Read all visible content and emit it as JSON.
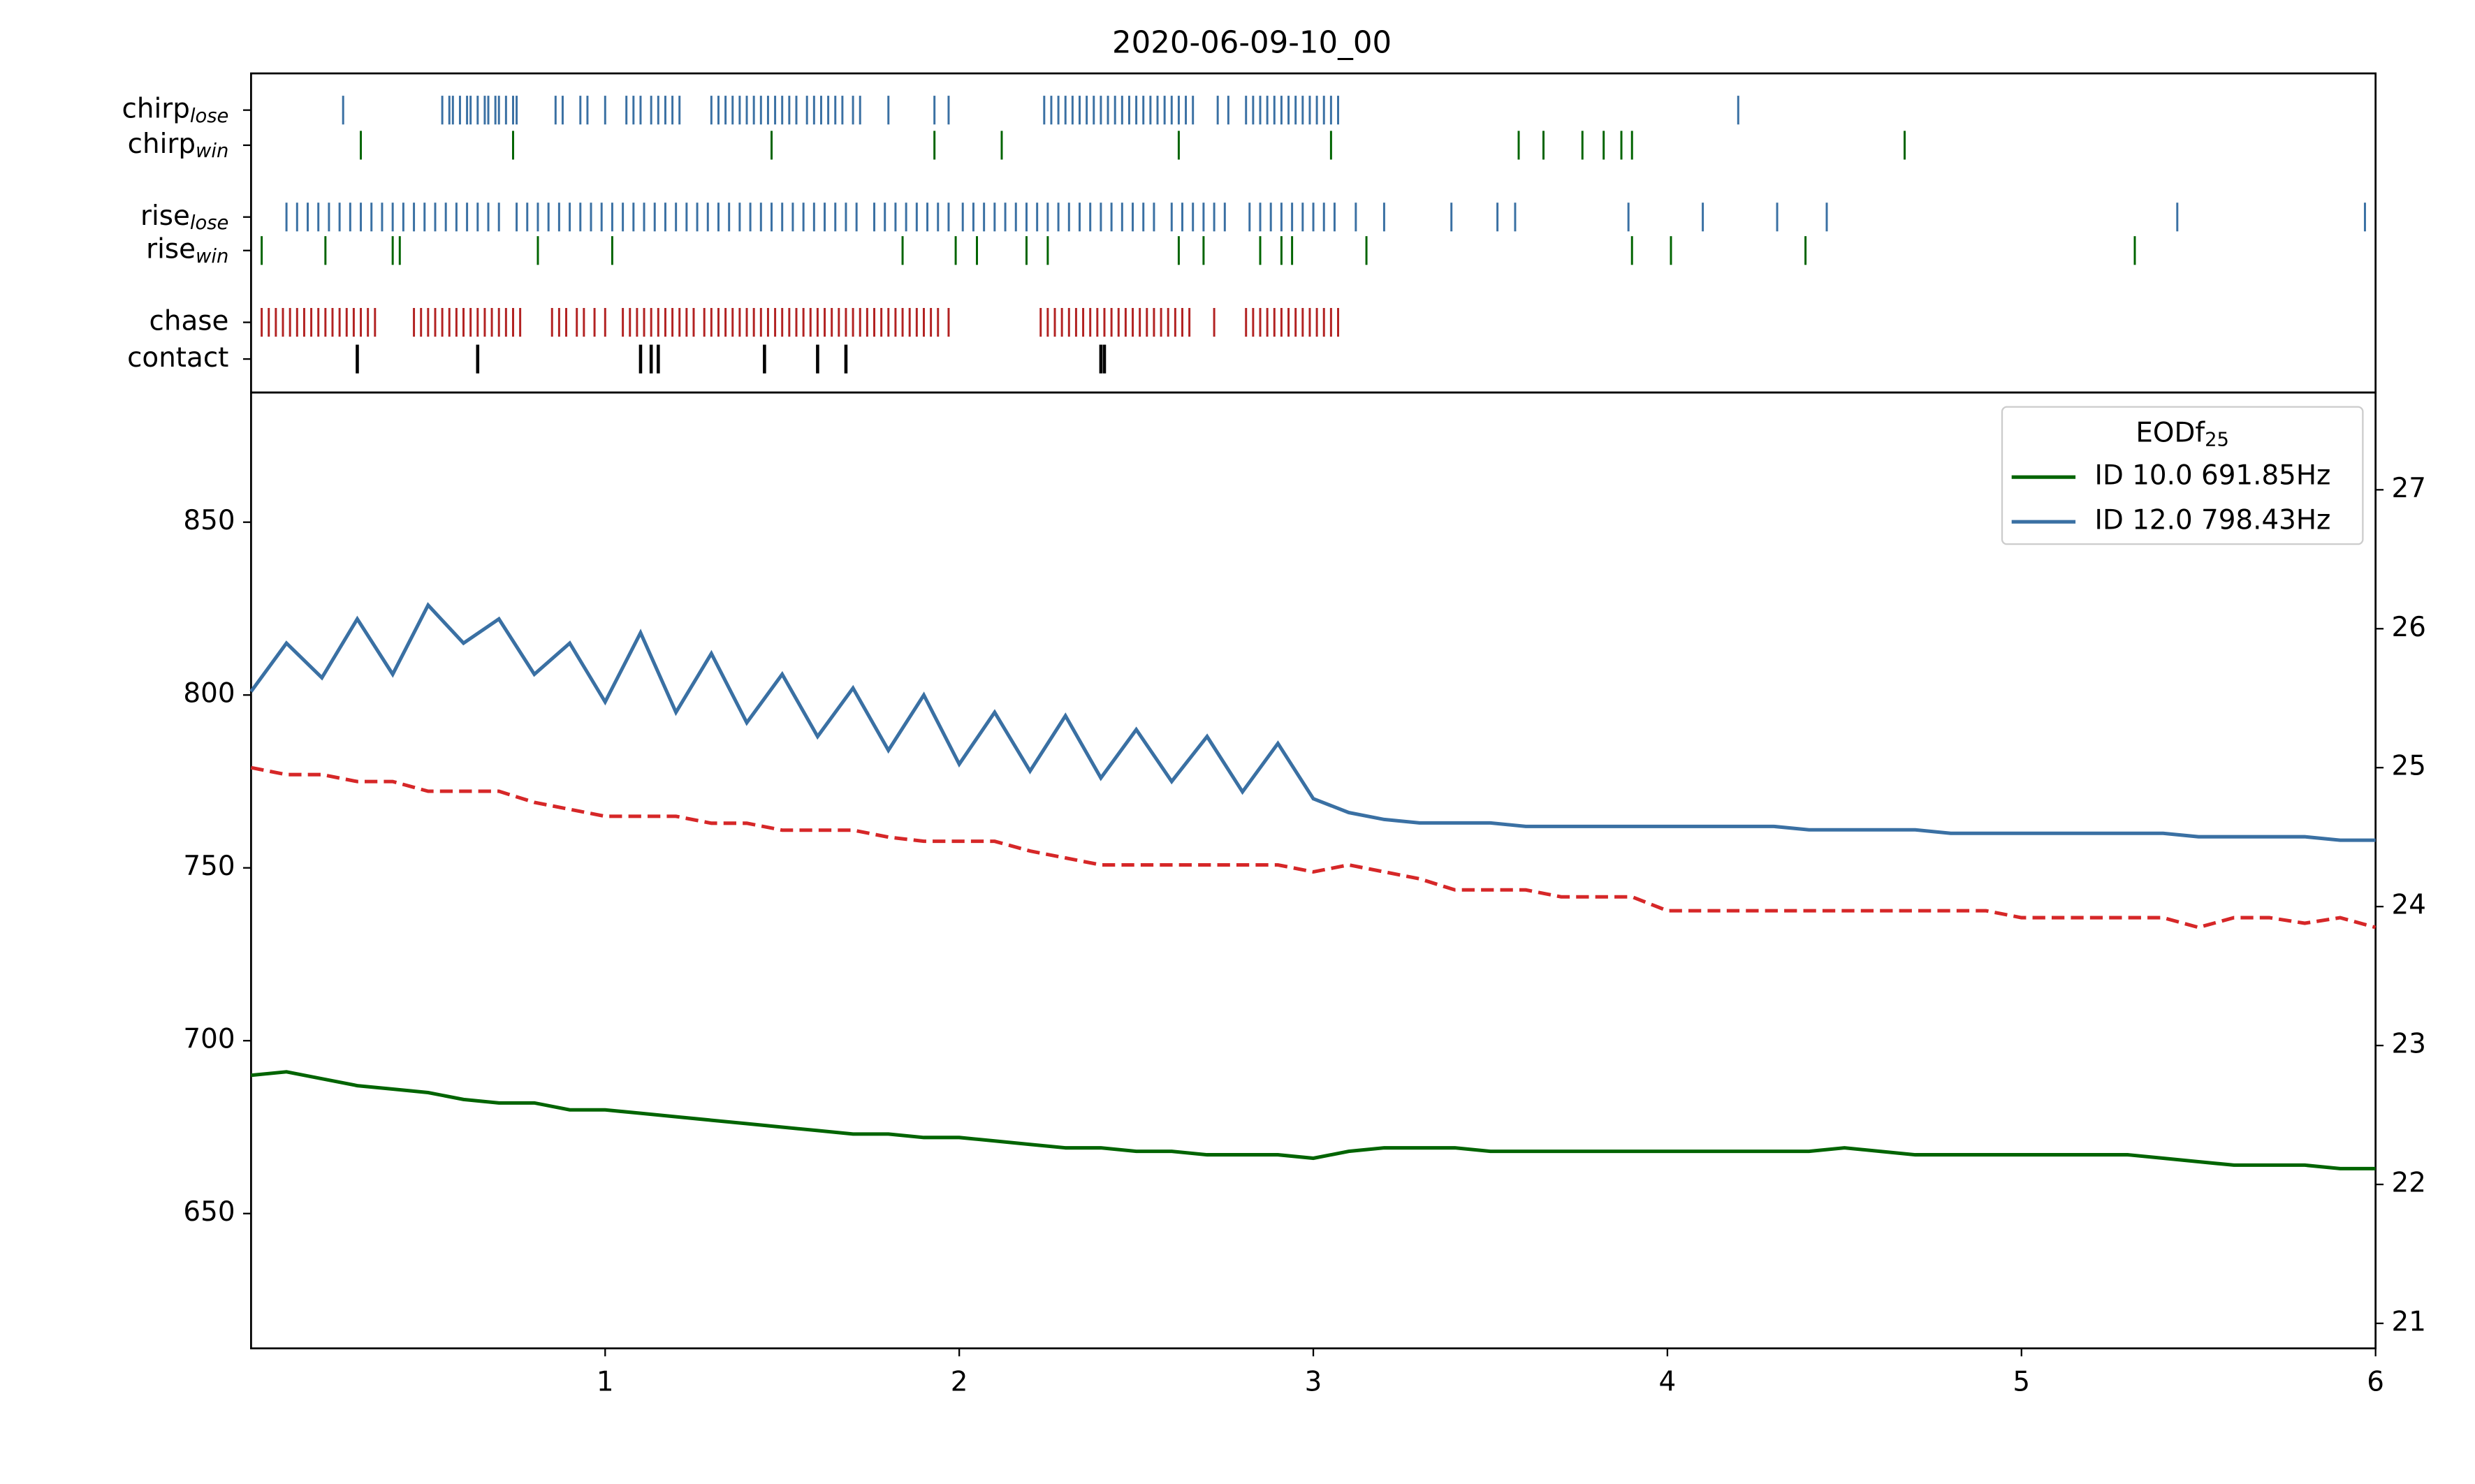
{
  "chart_data": {
    "type": "line",
    "title": "2020-06-09-10_00",
    "event_rows": [
      {
        "name": "chirp",
        "sub": "lose",
        "color": "#3a70a3",
        "times": [
          0.26,
          0.54,
          0.56,
          0.57,
          0.59,
          0.61,
          0.62,
          0.64,
          0.66,
          0.67,
          0.69,
          0.7,
          0.72,
          0.74,
          0.75,
          0.86,
          0.88,
          0.93,
          0.95,
          1.0,
          1.06,
          1.08,
          1.1,
          1.13,
          1.15,
          1.17,
          1.19,
          1.21,
          1.3,
          1.32,
          1.34,
          1.36,
          1.38,
          1.4,
          1.42,
          1.44,
          1.46,
          1.48,
          1.5,
          1.52,
          1.54,
          1.57,
          1.59,
          1.61,
          1.63,
          1.65,
          1.67,
          1.7,
          1.72,
          1.8,
          1.93,
          1.97,
          2.24,
          2.26,
          2.28,
          2.3,
          2.32,
          2.34,
          2.36,
          2.38,
          2.4,
          2.42,
          2.44,
          2.46,
          2.48,
          2.5,
          2.52,
          2.54,
          2.56,
          2.58,
          2.6,
          2.62,
          2.64,
          2.66,
          2.73,
          2.76,
          2.81,
          2.83,
          2.85,
          2.87,
          2.89,
          2.91,
          2.93,
          2.95,
          2.97,
          2.99,
          3.01,
          3.03,
          3.05,
          3.07,
          4.2
        ]
      },
      {
        "name": "chirp",
        "sub": "win",
        "color": "#006400",
        "times": [
          0.31,
          0.74,
          1.47,
          1.93,
          2.12,
          2.62,
          3.05,
          3.58,
          3.65,
          3.76,
          3.82,
          3.87,
          3.9,
          4.67
        ]
      },
      {
        "name": "rise",
        "sub": "lose",
        "color": "#3a70a3",
        "times": [
          0.1,
          0.13,
          0.16,
          0.19,
          0.22,
          0.25,
          0.28,
          0.31,
          0.34,
          0.37,
          0.4,
          0.43,
          0.46,
          0.49,
          0.52,
          0.55,
          0.58,
          0.61,
          0.64,
          0.67,
          0.7,
          0.75,
          0.78,
          0.81,
          0.84,
          0.87,
          0.9,
          0.93,
          0.96,
          0.99,
          1.02,
          1.05,
          1.08,
          1.11,
          1.14,
          1.17,
          1.2,
          1.23,
          1.26,
          1.29,
          1.32,
          1.35,
          1.38,
          1.41,
          1.44,
          1.47,
          1.5,
          1.53,
          1.56,
          1.59,
          1.62,
          1.65,
          1.68,
          1.71,
          1.76,
          1.79,
          1.82,
          1.85,
          1.88,
          1.91,
          1.94,
          1.97,
          2.01,
          2.04,
          2.07,
          2.1,
          2.13,
          2.16,
          2.19,
          2.22,
          2.25,
          2.28,
          2.31,
          2.34,
          2.37,
          2.4,
          2.43,
          2.46,
          2.49,
          2.52,
          2.55,
          2.6,
          2.63,
          2.66,
          2.69,
          2.72,
          2.75,
          2.82,
          2.85,
          2.88,
          2.91,
          2.94,
          2.97,
          3.0,
          3.03,
          3.06,
          3.12,
          3.2,
          3.39,
          3.52,
          3.57,
          3.89,
          4.1,
          4.31,
          4.45,
          5.44,
          5.97
        ]
      },
      {
        "name": "rise",
        "sub": "win",
        "color": "#006400",
        "times": [
          0.03,
          0.21,
          0.4,
          0.42,
          0.81,
          1.02,
          1.84,
          1.99,
          2.05,
          2.19,
          2.25,
          2.62,
          2.69,
          2.85,
          2.91,
          2.94,
          3.15,
          3.9,
          4.01,
          4.39,
          5.32
        ]
      },
      {
        "name": "chase",
        "color": "#b22222",
        "times": [
          0.03,
          0.05,
          0.07,
          0.09,
          0.11,
          0.13,
          0.15,
          0.17,
          0.19,
          0.21,
          0.23,
          0.25,
          0.27,
          0.29,
          0.31,
          0.33,
          0.35,
          0.46,
          0.48,
          0.5,
          0.52,
          0.54,
          0.56,
          0.58,
          0.6,
          0.62,
          0.64,
          0.66,
          0.68,
          0.7,
          0.72,
          0.74,
          0.76,
          0.85,
          0.87,
          0.89,
          0.92,
          0.94,
          0.97,
          1.0,
          1.05,
          1.07,
          1.09,
          1.11,
          1.13,
          1.15,
          1.17,
          1.19,
          1.21,
          1.23,
          1.25,
          1.28,
          1.3,
          1.32,
          1.34,
          1.36,
          1.38,
          1.4,
          1.42,
          1.44,
          1.46,
          1.48,
          1.5,
          1.52,
          1.54,
          1.56,
          1.58,
          1.6,
          1.62,
          1.64,
          1.66,
          1.68,
          1.7,
          1.72,
          1.74,
          1.76,
          1.78,
          1.8,
          1.82,
          1.84,
          1.86,
          1.88,
          1.9,
          1.92,
          1.94,
          1.97,
          2.23,
          2.25,
          2.27,
          2.29,
          2.31,
          2.33,
          2.35,
          2.37,
          2.39,
          2.41,
          2.43,
          2.45,
          2.47,
          2.49,
          2.51,
          2.53,
          2.55,
          2.57,
          2.59,
          2.61,
          2.63,
          2.65,
          2.72,
          2.81,
          2.83,
          2.85,
          2.87,
          2.89,
          2.91,
          2.93,
          2.95,
          2.97,
          2.99,
          3.01,
          3.03,
          3.05,
          3.07
        ]
      },
      {
        "name": "contact",
        "color": "#000000",
        "times": [
          0.3,
          0.64,
          1.1,
          1.13,
          1.15,
          1.45,
          1.6,
          1.68,
          2.4,
          2.41
        ]
      }
    ],
    "x": [
      0,
      0.1,
      0.2,
      0.3,
      0.4,
      0.5,
      0.6,
      0.7,
      0.8,
      0.9,
      1.0,
      1.1,
      1.2,
      1.3,
      1.4,
      1.5,
      1.6,
      1.7,
      1.8,
      1.9,
      2.0,
      2.1,
      2.2,
      2.3,
      2.4,
      2.5,
      2.6,
      2.7,
      2.8,
      2.9,
      3.0,
      3.1,
      3.2,
      3.3,
      3.4,
      3.5,
      3.6,
      3.7,
      3.8,
      3.9,
      4.0,
      4.1,
      4.2,
      4.3,
      4.4,
      4.5,
      4.6,
      4.7,
      4.8,
      4.9,
      5.0,
      5.1,
      5.2,
      5.3,
      5.4,
      5.5,
      5.6,
      5.7,
      5.8,
      5.9,
      6.0
    ],
    "series": [
      {
        "name": "ID 10.0 691.85Hz",
        "color": "#006400",
        "values": [
          690,
          691,
          689,
          687,
          686,
          685,
          683,
          682,
          682,
          680,
          680,
          679,
          678,
          677,
          676,
          675,
          674,
          673,
          673,
          672,
          672,
          671,
          670,
          669,
          669,
          668,
          668,
          667,
          667,
          667,
          666,
          668,
          669,
          669,
          669,
          668,
          668,
          668,
          668,
          668,
          668,
          668,
          668,
          668,
          668,
          669,
          668,
          667,
          667,
          667,
          667,
          667,
          667,
          667,
          666,
          665,
          664,
          664,
          664,
          663,
          663
        ]
      },
      {
        "name": "ID 12.0 798.43Hz",
        "color": "#3a70a3",
        "values": [
          801,
          815,
          805,
          822,
          806,
          826,
          815,
          822,
          806,
          815,
          798,
          818,
          795,
          812,
          792,
          806,
          788,
          802,
          784,
          800,
          780,
          795,
          778,
          794,
          776,
          790,
          775,
          788,
          772,
          786,
          770,
          766,
          764,
          763,
          763,
          763,
          762,
          762,
          762,
          762,
          762,
          762,
          762,
          762,
          761,
          761,
          761,
          761,
          760,
          760,
          760,
          760,
          760,
          760,
          760,
          759,
          759,
          759,
          759,
          758,
          758
        ]
      },
      {
        "axis": "y2",
        "color": "#d62728",
        "dashed": true,
        "values": [
          25.0,
          24.95,
          24.95,
          24.9,
          24.9,
          24.83,
          24.83,
          24.83,
          24.75,
          24.7,
          24.65,
          24.65,
          24.65,
          24.6,
          24.6,
          24.55,
          24.55,
          24.55,
          24.5,
          24.47,
          24.47,
          24.47,
          24.4,
          24.35,
          24.3,
          24.3,
          24.3,
          24.3,
          24.3,
          24.3,
          24.25,
          24.3,
          24.25,
          24.2,
          24.12,
          24.12,
          24.12,
          24.07,
          24.07,
          24.07,
          23.97,
          23.97,
          23.97,
          23.97,
          23.97,
          23.97,
          23.97,
          23.97,
          23.97,
          23.97,
          23.92,
          23.92,
          23.92,
          23.92,
          23.92,
          23.85,
          23.92,
          23.92,
          23.88,
          23.92,
          23.85
        ]
      }
    ],
    "legend": {
      "title": "EODf",
      "title_sub": "25",
      "corner": "upper right"
    },
    "xlim": [
      0,
      6
    ],
    "xticks": [
      1,
      2,
      3,
      4,
      5,
      6
    ],
    "ylim": [
      611,
      887.5
    ],
    "yticks": [
      650,
      700,
      750,
      800,
      850
    ],
    "y2lim": [
      20.82,
      27.7
    ],
    "y2ticks": [
      21,
      22,
      23,
      24,
      25,
      26,
      27
    ]
  }
}
